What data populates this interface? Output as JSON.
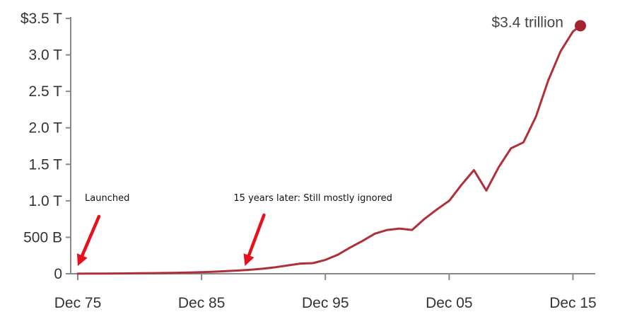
{
  "chart_data": {
    "type": "line",
    "title": "",
    "xlabel": "",
    "ylabel": "",
    "ylim": [
      0,
      3500
    ],
    "xlim": [
      1975,
      2016
    ],
    "y_ticks": [
      {
        "value": 0,
        "label": "0"
      },
      {
        "value": 500,
        "label": "500 B"
      },
      {
        "value": 1000,
        "label": "1.0 T"
      },
      {
        "value": 1500,
        "label": "1.5 T"
      },
      {
        "value": 2000,
        "label": "2.0 T"
      },
      {
        "value": 2500,
        "label": "2.5 T"
      },
      {
        "value": 3000,
        "label": "3.0 T"
      },
      {
        "value": 3500,
        "label": "$3.5 T"
      }
    ],
    "x_ticks": [
      {
        "value": 1975,
        "label": "Dec 75"
      },
      {
        "value": 1985,
        "label": "Dec 85"
      },
      {
        "value": 1995,
        "label": "Dec 95"
      },
      {
        "value": 2005,
        "label": "Dec 05"
      },
      {
        "value": 2015,
        "label": "Dec 15"
      }
    ],
    "grid": false,
    "series": [
      {
        "color": "#b0303a",
        "x": [
          1975,
          1976,
          1977,
          1978,
          1979,
          1980,
          1981,
          1982,
          1983,
          1984,
          1985,
          1986,
          1987,
          1988,
          1989,
          1990,
          1991,
          1992,
          1993,
          1994,
          1995,
          1996,
          1997,
          1998,
          1999,
          2000,
          2001,
          2002,
          2003,
          2004,
          2005,
          2006,
          2007,
          2008,
          2009,
          2010,
          2011,
          2012,
          2013,
          2014,
          2015,
          2015.6
        ],
        "values": [
          1,
          2,
          3,
          4,
          5,
          7,
          9,
          11,
          14,
          17,
          21,
          28,
          36,
          45,
          55,
          70,
          90,
          115,
          140,
          145,
          190,
          260,
          360,
          450,
          550,
          600,
          620,
          600,
          750,
          880,
          1000,
          1220,
          1420,
          1140,
          1460,
          1720,
          1800,
          2150,
          2650,
          3050,
          3320,
          3400
        ]
      }
    ],
    "end_point": {
      "x": 2015.6,
      "y": 3400,
      "label": "$3.4 trillion",
      "color": "#a5242f"
    },
    "annotations": [
      {
        "text": "Launched",
        "x": 1975
      },
      {
        "text": "15 years later: Still mostly ignored",
        "x": 1988.5
      }
    ],
    "arrow_color": "#e8101c"
  }
}
